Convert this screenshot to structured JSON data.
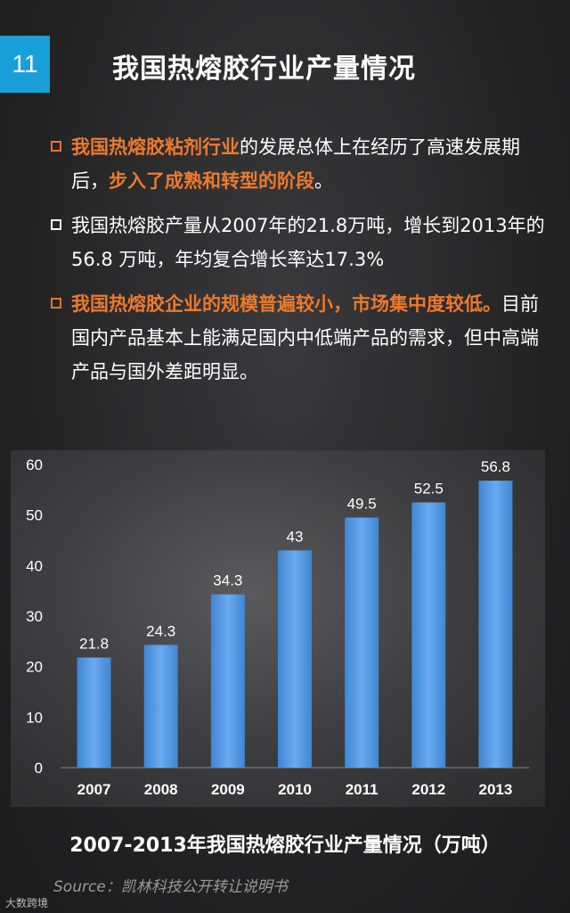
{
  "page_number": "11",
  "title": "我国热熔胶行业产量情况",
  "bullets": [
    {
      "parts": [
        {
          "t": "我国热熔胶粘剂行业",
          "hl": true
        },
        {
          "t": "的发展总体上在经历了高速发展期后，",
          "hl": false
        },
        {
          "t": "步入了成熟和转型的阶段",
          "hl": true
        },
        {
          "t": "。",
          "hl": false
        }
      ],
      "box_color": "orange"
    },
    {
      "parts": [
        {
          "t": "我国热熔胶产量从2007年的21.8万吨，增长到2013年的 56.8 万吨，年均复合增长率达17.3%",
          "hl": false
        }
      ],
      "box_color": "white"
    },
    {
      "parts": [
        {
          "t": "我国热熔胶企业的规模普遍较小，市场集中度较低。",
          "hl": true
        },
        {
          "t": "目前国内产品基本上能满足国内中低端产品的需求，但中高端产品与国外差距明显。",
          "hl": false
        }
      ],
      "box_color": "orange"
    }
  ],
  "chart_data": {
    "type": "bar",
    "categories": [
      "2007",
      "2008",
      "2009",
      "2010",
      "2011",
      "2012",
      "2013"
    ],
    "values": [
      21.8,
      24.3,
      34.3,
      43,
      49.5,
      52.5,
      56.8
    ],
    "data_labels": [
      "21.8",
      "24.3",
      "34.3",
      "43",
      "49.5",
      "52.5",
      "56.8"
    ],
    "ylim": [
      0,
      60
    ],
    "yticks": [
      0,
      10,
      20,
      30,
      40,
      50,
      60
    ],
    "title": "2007-2013年我国热熔胶行业产量情况（万吨）",
    "xlabel": "",
    "ylabel": "",
    "grid": false,
    "bar_color": "#4a90d9"
  },
  "source": "Source：凯林科技公开转让说明书",
  "logo": "大数跨境",
  "colors": {
    "accent": "#1aa0d8",
    "highlight": "#ec7a2e"
  }
}
